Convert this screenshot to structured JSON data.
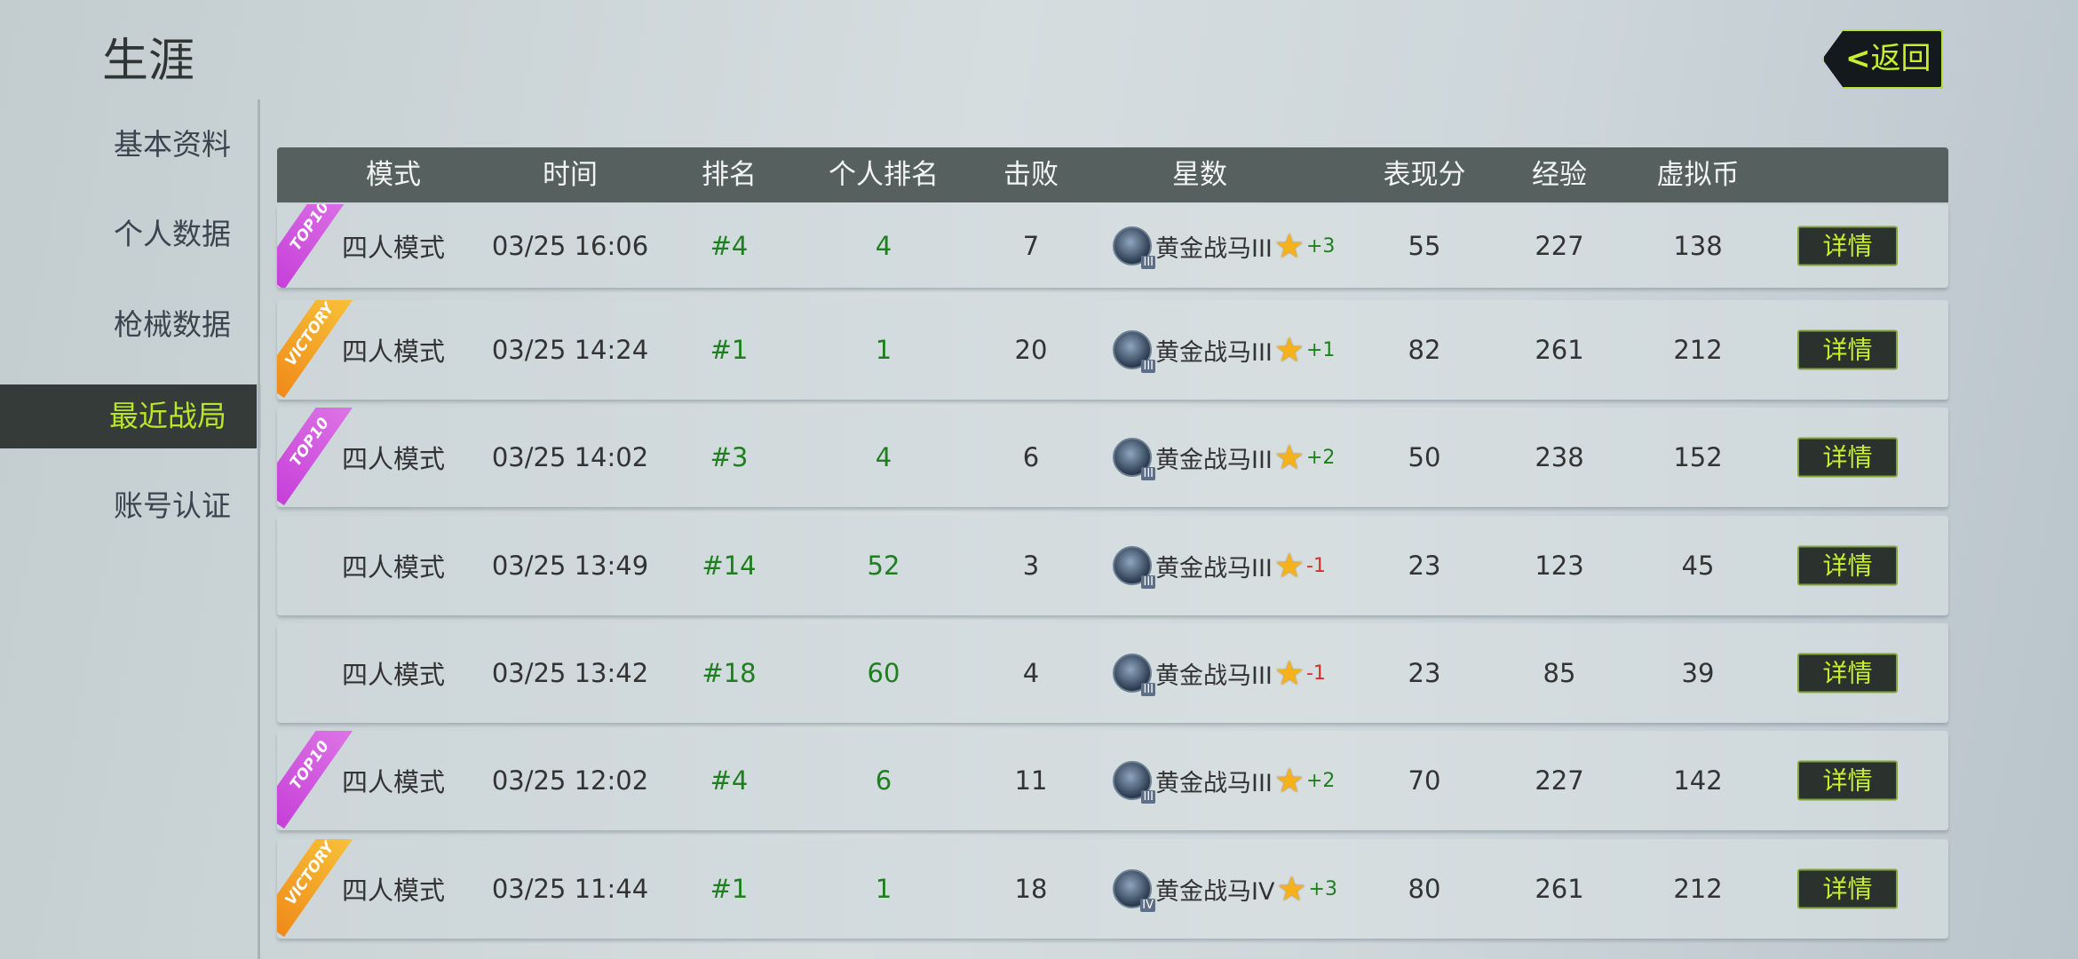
{
  "page": {
    "title": "生涯"
  },
  "sidebar": {
    "items": [
      {
        "label": "基本资料",
        "active": false
      },
      {
        "label": "个人数据",
        "active": false
      },
      {
        "label": "枪械数据",
        "active": false
      },
      {
        "label": "最近战局",
        "active": true
      },
      {
        "label": "账号认证",
        "active": false
      }
    ]
  },
  "back_button": {
    "label": "返回",
    "icon": "chevron-left-icon"
  },
  "colors": {
    "accent": "#b8e62a",
    "header": "#56605e",
    "positive": "#1e7f1e",
    "negative": "#d3302c",
    "top10_ribbon": "#c640d8",
    "victory_ribbon": "#f08a1a"
  },
  "table": {
    "headers": [
      "模式",
      "时间",
      "排名",
      "个人排名",
      "击败",
      "星数",
      "表现分",
      "经验",
      "虚拟币"
    ],
    "detail_label": "详情",
    "rows": [
      {
        "ribbon": "TOP10",
        "mode": "四人模式",
        "time": "03/25 16:06",
        "rank": "#4",
        "personal_rank": "4",
        "kills": "7",
        "tier": "黄金战马III",
        "tier_badge": "III",
        "star_delta": "+3",
        "score": "55",
        "exp": "227",
        "coins": "138"
      },
      {
        "ribbon": "VICTORY",
        "mode": "四人模式",
        "time": "03/25 14:24",
        "rank": "#1",
        "personal_rank": "1",
        "kills": "20",
        "tier": "黄金战马III",
        "tier_badge": "III",
        "star_delta": "+1",
        "score": "82",
        "exp": "261",
        "coins": "212"
      },
      {
        "ribbon": "TOP10",
        "mode": "四人模式",
        "time": "03/25 14:02",
        "rank": "#3",
        "personal_rank": "4",
        "kills": "6",
        "tier": "黄金战马III",
        "tier_badge": "III",
        "star_delta": "+2",
        "score": "50",
        "exp": "238",
        "coins": "152"
      },
      {
        "ribbon": "",
        "mode": "四人模式",
        "time": "03/25 13:49",
        "rank": "#14",
        "personal_rank": "52",
        "kills": "3",
        "tier": "黄金战马III",
        "tier_badge": "III",
        "star_delta": "-1",
        "score": "23",
        "exp": "123",
        "coins": "45"
      },
      {
        "ribbon": "",
        "mode": "四人模式",
        "time": "03/25 13:42",
        "rank": "#18",
        "personal_rank": "60",
        "kills": "4",
        "tier": "黄金战马III",
        "tier_badge": "III",
        "star_delta": "-1",
        "score": "23",
        "exp": "85",
        "coins": "39"
      },
      {
        "ribbon": "TOP10",
        "mode": "四人模式",
        "time": "03/25 12:02",
        "rank": "#4",
        "personal_rank": "6",
        "kills": "11",
        "tier": "黄金战马III",
        "tier_badge": "III",
        "star_delta": "+2",
        "score": "70",
        "exp": "227",
        "coins": "142"
      },
      {
        "ribbon": "VICTORY",
        "mode": "四人模式",
        "time": "03/25 11:44",
        "rank": "#1",
        "personal_rank": "1",
        "kills": "18",
        "tier": "黄金战马IV",
        "tier_badge": "IV",
        "star_delta": "+3",
        "score": "80",
        "exp": "261",
        "coins": "212"
      }
    ]
  }
}
